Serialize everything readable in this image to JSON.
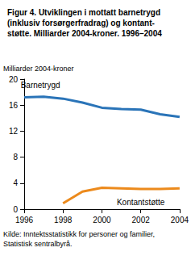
{
  "chart_data": {
    "type": "line",
    "title": "Figur 4. Utviklingen i mottatt barnetrygd\n(inklusiv forsørgerfradrag) og kontant-\nstøtte. Milliarder 2004-kroner. 1996–2004",
    "y_label": "Milliarder 2004-kroner",
    "source": "Kilde: Inntektsstatistikk for personer og familier,\nStatistisk sentralbyrå.",
    "x": [
      1996,
      1997,
      1998,
      1999,
      2000,
      2001,
      2002,
      2003,
      2004
    ],
    "series": [
      {
        "name": "Barnetrygd",
        "color": "#2a74b8",
        "values": [
          17.2,
          17.3,
          17.0,
          16.4,
          15.6,
          15.4,
          15.3,
          14.6,
          14.2
        ]
      },
      {
        "name": "Kontantstøtte",
        "color": "#ec8a1c",
        "values": [
          null,
          null,
          0.9,
          2.7,
          3.3,
          3.2,
          3.1,
          3.1,
          3.2
        ]
      }
    ],
    "xlim": [
      1996,
      2004
    ],
    "xticks": [
      1996,
      1998,
      2000,
      2002,
      2004
    ],
    "ylim": [
      0,
      20
    ],
    "yticks": [
      0,
      4,
      8,
      12,
      16,
      20
    ],
    "grid": false
  }
}
